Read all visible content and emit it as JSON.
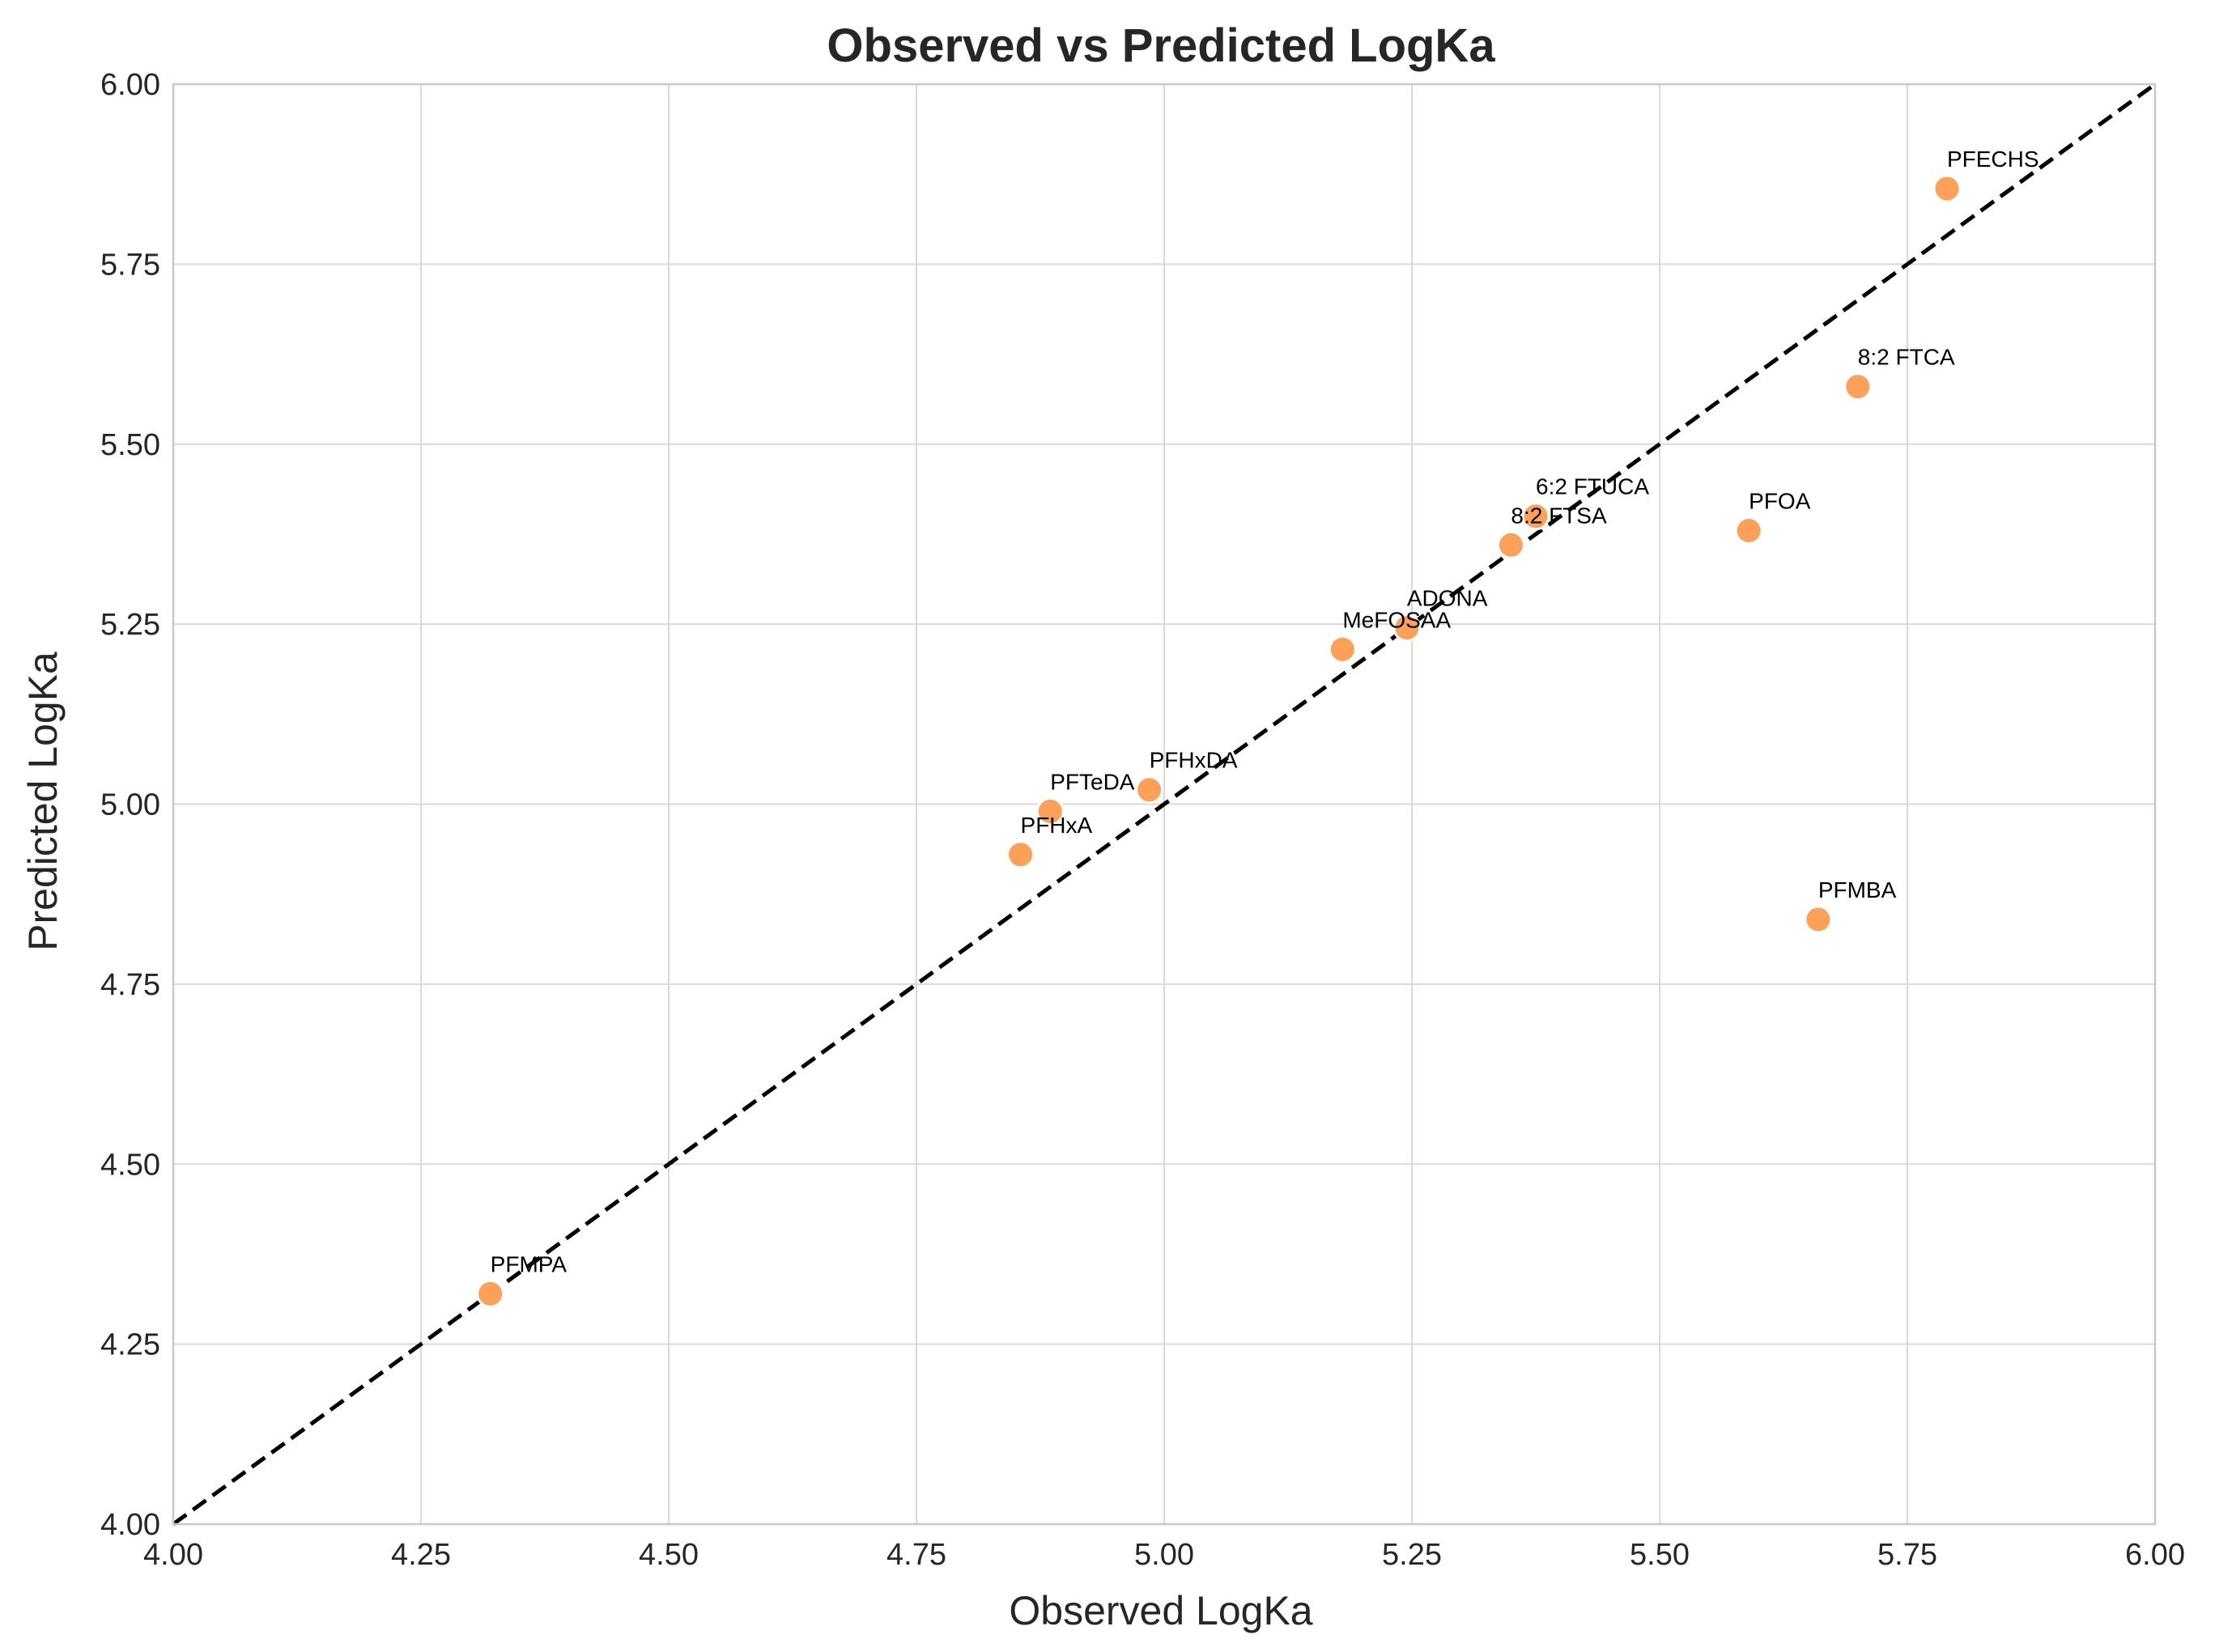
{
  "chart_data": {
    "type": "scatter",
    "title": "Observed vs Predicted LogKa",
    "xlabel": "Observed LogKa",
    "ylabel": "Predicted LogKa",
    "xlim": [
      4.0,
      6.0
    ],
    "ylim": [
      4.0,
      6.0
    ],
    "x_ticks": [
      "4.00",
      "4.25",
      "4.50",
      "4.75",
      "5.00",
      "5.25",
      "5.50",
      "5.75",
      "6.00"
    ],
    "y_ticks": [
      "4.00",
      "4.25",
      "4.50",
      "4.75",
      "5.00",
      "5.25",
      "5.50",
      "5.75",
      "6.00"
    ],
    "grid": true,
    "reference_line": {
      "style": "dashed",
      "color": "#000000",
      "from": [
        4.0,
        4.0
      ],
      "to": [
        6.0,
        6.0
      ]
    },
    "point_color": "#fda05a",
    "points": [
      {
        "label": "PFMPA",
        "x": 4.32,
        "y": 4.32
      },
      {
        "label": "PFHxA",
        "x": 4.855,
        "y": 4.93
      },
      {
        "label": "PFTeDA",
        "x": 4.885,
        "y": 4.99
      },
      {
        "label": "PFHxDA",
        "x": 4.985,
        "y": 5.02
      },
      {
        "label": "MeFOSAA",
        "x": 5.18,
        "y": 5.215
      },
      {
        "label": "ADONA",
        "x": 5.245,
        "y": 5.245
      },
      {
        "label": "8:2 FTSA",
        "x": 5.35,
        "y": 5.36
      },
      {
        "label": "6:2 FTUCA",
        "x": 5.375,
        "y": 5.4
      },
      {
        "label": "PFOA",
        "x": 5.59,
        "y": 5.38
      },
      {
        "label": "PFMBA",
        "x": 5.66,
        "y": 4.84
      },
      {
        "label": "8:2 FTCA",
        "x": 5.7,
        "y": 5.58
      },
      {
        "label": "PFECHS",
        "x": 5.79,
        "y": 5.855
      }
    ]
  }
}
